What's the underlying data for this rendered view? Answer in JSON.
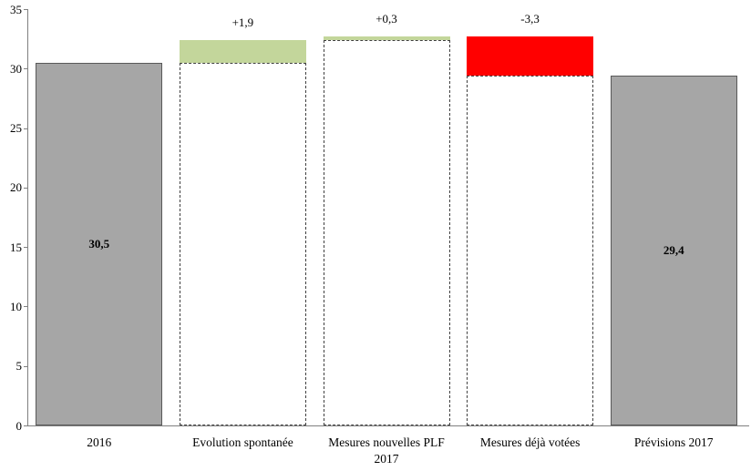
{
  "chart_data": {
    "type": "bar",
    "subtype": "waterfall",
    "title": "",
    "xlabel": "",
    "ylabel": "",
    "ylim": [
      0,
      35
    ],
    "yticks": [
      0,
      5,
      10,
      15,
      20,
      25,
      30,
      35
    ],
    "grid": false,
    "legend": false,
    "categories": [
      "2016",
      "Evolution spontanée",
      "Mesures nouvelles PLF 2017",
      "Mesures déjà votées",
      "Prévisions 2017"
    ],
    "bars": [
      {
        "category": "2016",
        "start": 0,
        "end": 30.5,
        "style": "solid-gray",
        "inner_label": "30,5",
        "delta_label": ""
      },
      {
        "category": "Evolution spontanée",
        "start": 30.5,
        "end": 32.4,
        "style": "float-green",
        "inner_label": "",
        "delta_label": "+1,9"
      },
      {
        "category": "Mesures nouvelles PLF 2017",
        "start": 32.4,
        "end": 32.7,
        "style": "float-green",
        "inner_label": "",
        "delta_label": "+0,3"
      },
      {
        "category": "Mesures déjà votées",
        "start": 32.7,
        "end": 29.4,
        "style": "float-red",
        "inner_label": "",
        "delta_label": "-3,3"
      },
      {
        "category": "Prévisions 2017",
        "start": 0,
        "end": 29.4,
        "style": "solid-gray",
        "inner_label": "29,4",
        "delta_label": ""
      }
    ],
    "colors": {
      "gray_fill": "#a6a6a6",
      "gray_border": "#595959",
      "green_fill": "#c3d69b",
      "red_fill": "#ff0000",
      "dashed_border": "#404040",
      "axis": "#808080",
      "text": "#000000"
    }
  }
}
